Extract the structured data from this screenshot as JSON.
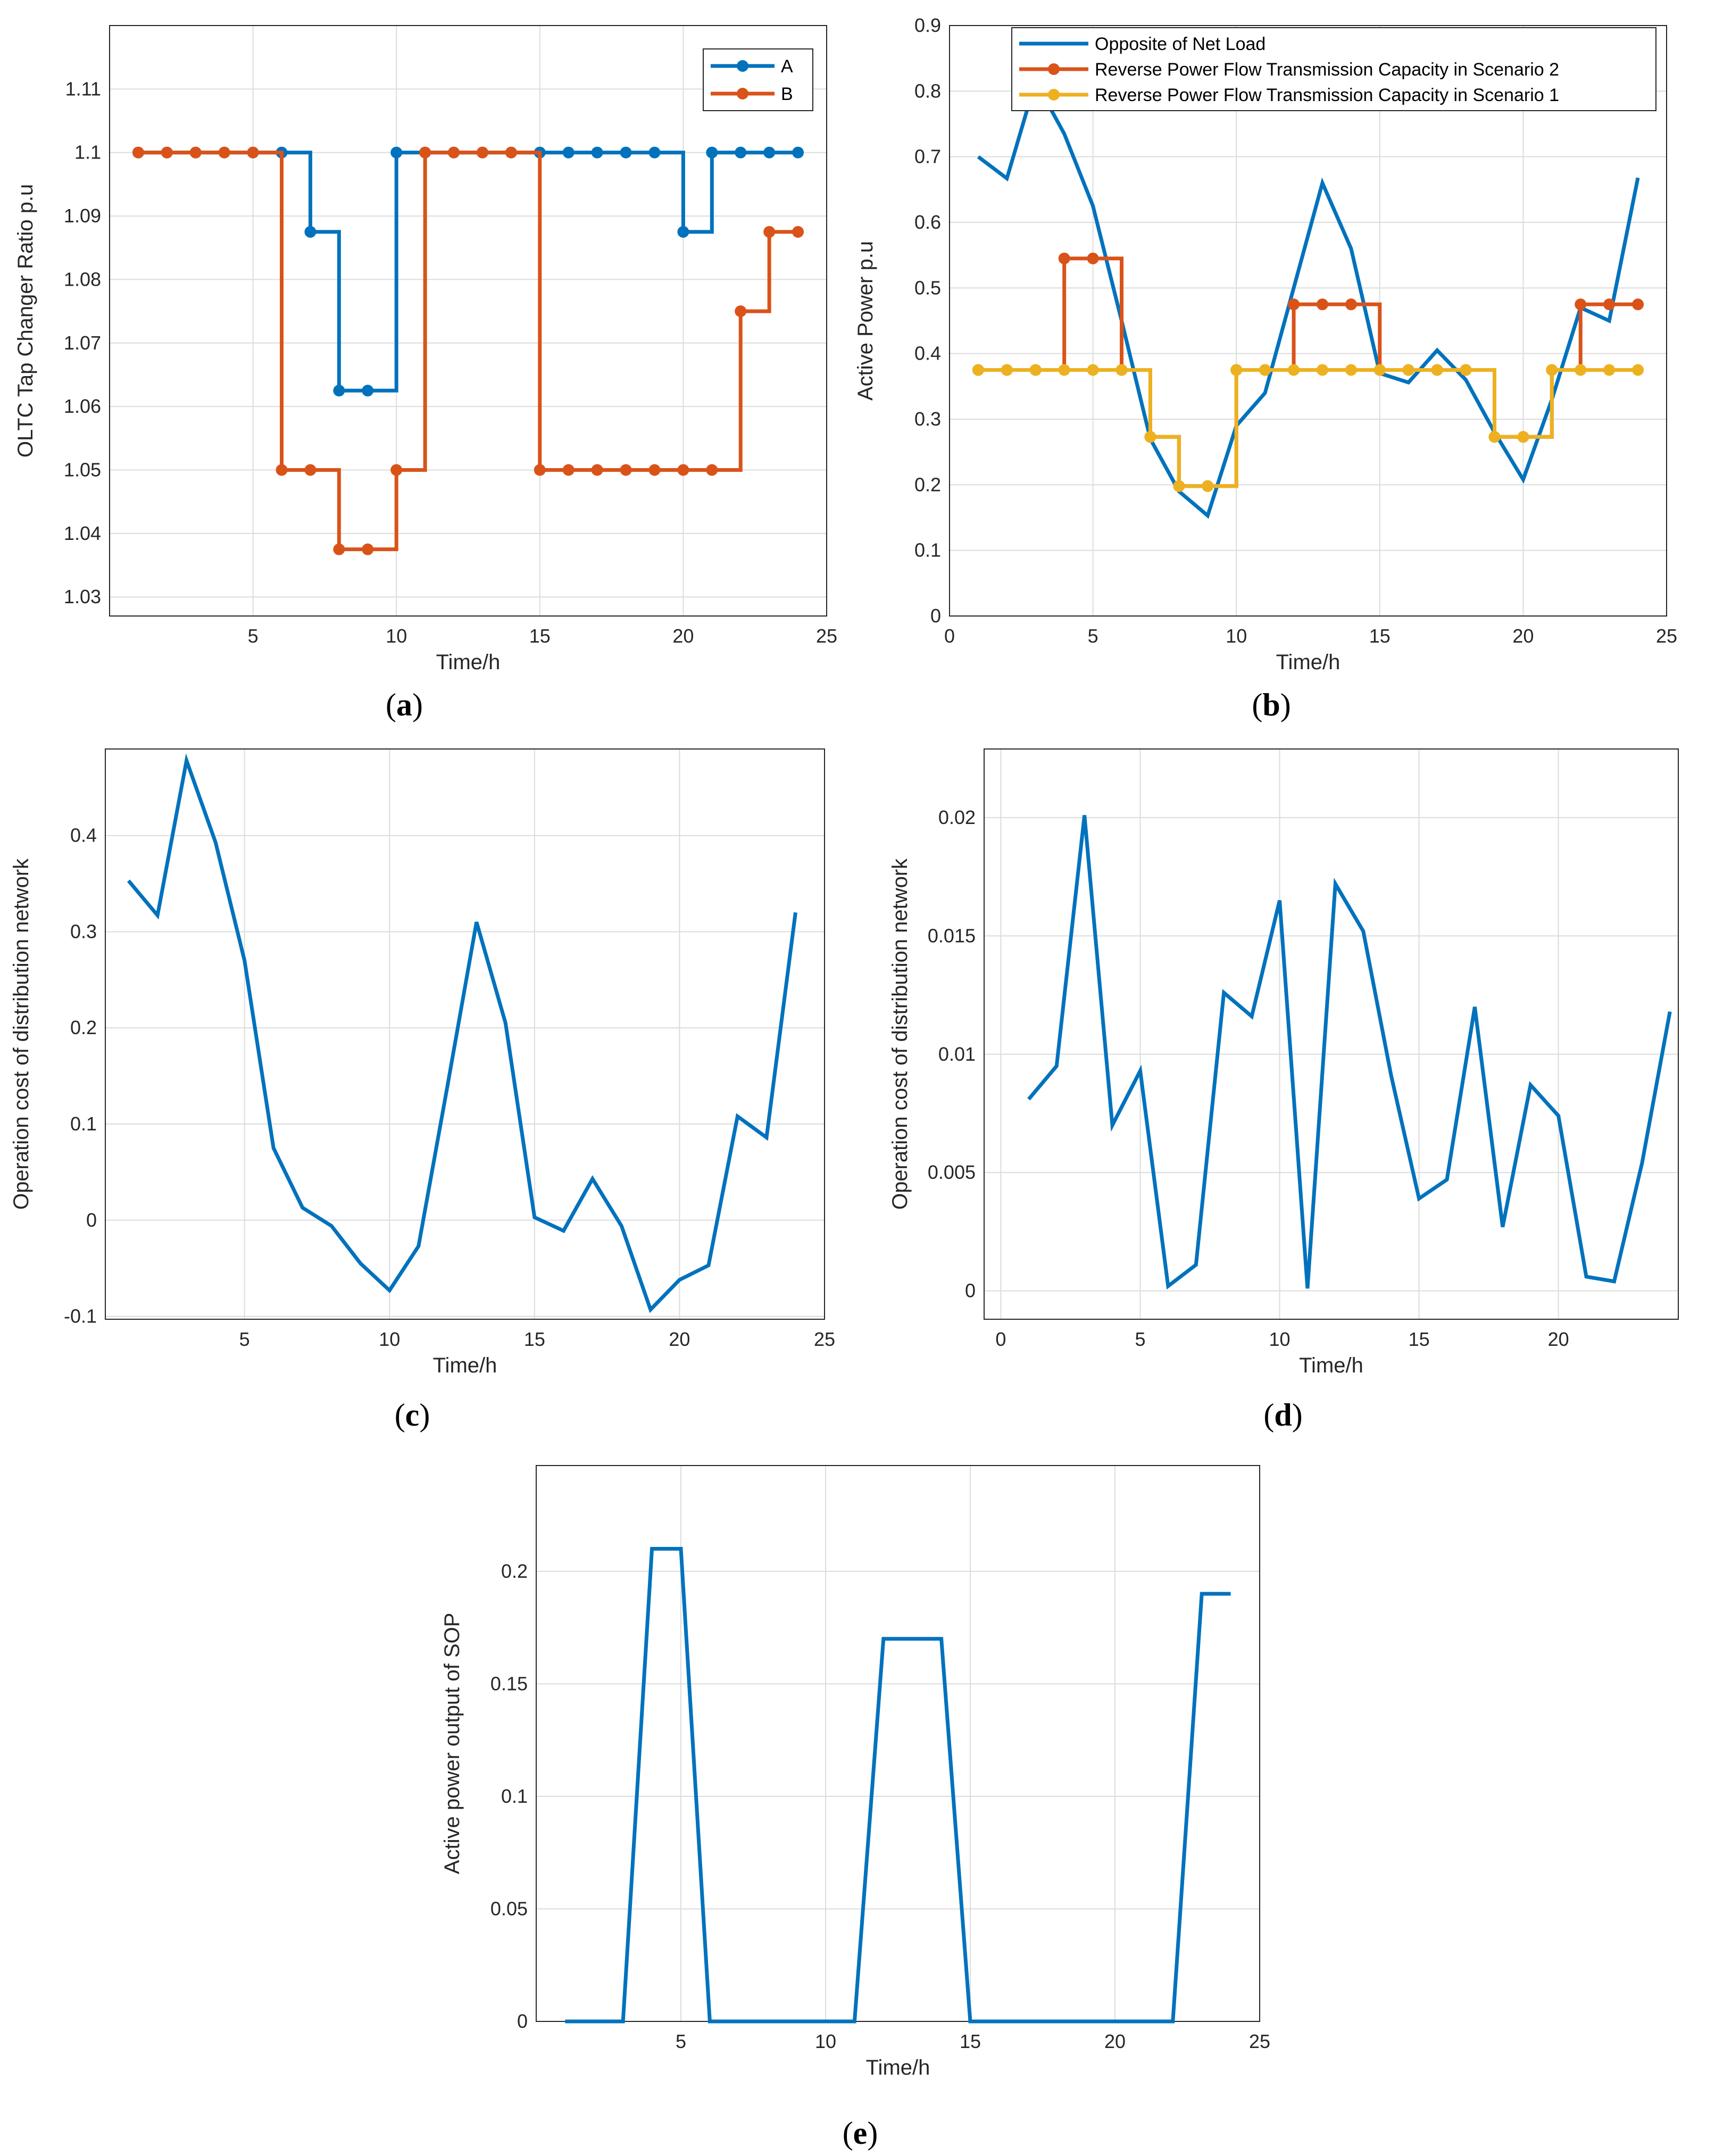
{
  "colors": {
    "blue": "#0072BD",
    "orange": "#D95319",
    "yellow": "#EDB120"
  },
  "chart_data": [
    {
      "id": "a",
      "panel_label": "a",
      "type": "line",
      "step": true,
      "markers": true,
      "xlabel": "Time/h",
      "ylabel": "OLTC Tap Changer Ratio p.u",
      "xlim": [
        0,
        25
      ],
      "ylim": [
        1.027,
        1.12
      ],
      "xticks": [
        5,
        10,
        15,
        20,
        25
      ],
      "yticks": [
        1.03,
        1.04,
        1.05,
        1.06,
        1.07,
        1.08,
        1.09,
        1.1,
        1.11
      ],
      "x": [
        1,
        2,
        3,
        4,
        5,
        6,
        7,
        8,
        9,
        10,
        11,
        12,
        13,
        14,
        15,
        16,
        17,
        18,
        19,
        20,
        21,
        22,
        23,
        24
      ],
      "series": [
        {
          "name": "A",
          "color": "#0072BD",
          "values": [
            1.1,
            1.1,
            1.1,
            1.1,
            1.1,
            1.1,
            1.0875,
            1.0625,
            1.0625,
            1.1,
            1.1,
            1.1,
            1.1,
            1.1,
            1.1,
            1.1,
            1.1,
            1.1,
            1.1,
            1.0875,
            1.1,
            1.1,
            1.1,
            1.1
          ]
        },
        {
          "name": "B",
          "color": "#D95319",
          "values": [
            1.1,
            1.1,
            1.1,
            1.1,
            1.1,
            1.05,
            1.05,
            1.0375,
            1.0375,
            1.05,
            1.1,
            1.1,
            1.1,
            1.1,
            1.05,
            1.05,
            1.05,
            1.05,
            1.05,
            1.05,
            1.05,
            1.075,
            1.0875,
            1.0875
          ]
        }
      ],
      "legend": [
        "A",
        "B"
      ],
      "legend_position": "top-right"
    },
    {
      "id": "b",
      "panel_label": "b",
      "type": "line",
      "xlabel": "Time/h",
      "ylabel": "Active Power p.u",
      "xlim": [
        0,
        25
      ],
      "ylim": [
        0,
        0.9
      ],
      "xticks": [
        0,
        5,
        10,
        15,
        20,
        25
      ],
      "yticks": [
        0,
        0.1,
        0.2,
        0.3,
        0.4,
        0.5,
        0.6,
        0.7,
        0.8,
        0.9
      ],
      "x": [
        1,
        2,
        3,
        4,
        5,
        6,
        7,
        8,
        9,
        10,
        11,
        12,
        13,
        14,
        15,
        16,
        17,
        18,
        19,
        20,
        21,
        22,
        23,
        24
      ],
      "series": [
        {
          "name": "Opposite of Net Load",
          "color": "#0072BD",
          "step": false,
          "markers": false,
          "values": [
            0.7,
            0.667,
            0.815,
            0.735,
            0.625,
            0.45,
            0.27,
            0.19,
            0.153,
            0.29,
            0.34,
            0.5,
            0.66,
            0.56,
            0.37,
            0.356,
            0.405,
            0.36,
            0.28,
            0.208,
            0.33,
            0.47,
            0.45,
            0.668
          ]
        },
        {
          "name": "Reverse Power Flow Transmission Capacity in Scenario 2",
          "color": "#D95319",
          "step": true,
          "markers": true,
          "values": [
            0.375,
            0.375,
            0.375,
            0.545,
            0.545,
            0.375,
            0.273,
            0.198,
            0.198,
            0.375,
            0.375,
            0.475,
            0.475,
            0.475,
            0.375,
            0.375,
            0.375,
            0.375,
            0.273,
            0.273,
            0.375,
            0.475,
            0.475,
            0.475
          ]
        },
        {
          "name": "Reverse Power Flow Transmission Capacity in Scenario 1",
          "color": "#EDB120",
          "step": true,
          "markers": true,
          "values": [
            0.375,
            0.375,
            0.375,
            0.375,
            0.375,
            0.375,
            0.273,
            0.198,
            0.198,
            0.375,
            0.375,
            0.375,
            0.375,
            0.375,
            0.375,
            0.375,
            0.375,
            0.375,
            0.273,
            0.273,
            0.375,
            0.375,
            0.375,
            0.375
          ]
        }
      ],
      "legend": [
        "Opposite of Net Load",
        "Reverse Power Flow Transmission Capacity in Scenario 2",
        "Reverse Power Flow Transmission Capacity in Scenario 1"
      ],
      "legend_position": "top-right"
    },
    {
      "id": "c",
      "panel_label": "c",
      "type": "line",
      "xlabel": "Time/h",
      "ylabel": "Operation cost of distribution network",
      "xlim": [
        0.2,
        25
      ],
      "ylim": [
        -0.103,
        0.49
      ],
      "xticks": [
        5,
        10,
        15,
        20,
        25
      ],
      "yticks": [
        -0.1,
        0,
        0.1,
        0.2,
        0.3,
        0.4
      ],
      "ytick_labels": [
        "-0.1",
        "0",
        "0.1",
        "0.2",
        "0.3",
        "0.4"
      ],
      "x": [
        1,
        2,
        3,
        4,
        5,
        6,
        7,
        8,
        9,
        10,
        11,
        12,
        13,
        14,
        15,
        16,
        17,
        18,
        19,
        20,
        21,
        22,
        23,
        24
      ],
      "series": [
        {
          "name": "cost",
          "color": "#0072BD",
          "values": [
            0.353,
            0.317,
            0.478,
            0.393,
            0.27,
            0.075,
            0.013,
            -0.006,
            -0.045,
            -0.073,
            -0.027,
            0.14,
            0.31,
            0.205,
            0.003,
            -0.011,
            0.043,
            -0.006,
            -0.093,
            -0.062,
            -0.047,
            0.108,
            0.086,
            0.32
          ]
        }
      ]
    },
    {
      "id": "d",
      "panel_label": "d",
      "type": "line",
      "xlabel": "Time/h",
      "ylabel": "Operation cost of distribution network",
      "xlim": [
        -0.6,
        24.3
      ],
      "ylim": [
        -0.0012,
        0.0229
      ],
      "xticks": [
        0,
        5,
        10,
        15,
        20
      ],
      "yticks": [
        0,
        0.005,
        0.01,
        0.015,
        0.02
      ],
      "x": [
        1,
        2,
        3,
        4,
        5,
        6,
        7,
        8,
        9,
        10,
        11,
        12,
        13,
        14,
        15,
        16,
        17,
        18,
        19,
        20,
        21,
        22,
        23,
        24
      ],
      "series": [
        {
          "name": "cost",
          "color": "#0072BD",
          "values": [
            0.0081,
            0.0095,
            0.0201,
            0.007,
            0.0093,
            0.0002,
            0.0011,
            0.0126,
            0.0116,
            0.0165,
            0.0001,
            0.0172,
            0.0152,
            0.0091,
            0.0039,
            0.0047,
            0.012,
            0.0027,
            0.0087,
            0.0074,
            0.0006,
            0.0004,
            0.0054,
            0.0118
          ]
        }
      ]
    },
    {
      "id": "e",
      "panel_label": "e",
      "type": "line",
      "xlabel": "Time/h",
      "ylabel": "Active power output of SOP",
      "xlim": [
        0,
        25
      ],
      "ylim": [
        0,
        0.247
      ],
      "xticks": [
        5,
        10,
        15,
        20,
        25
      ],
      "yticks": [
        0,
        0.05,
        0.1,
        0.15,
        0.2
      ],
      "x": [
        1,
        2,
        3,
        4,
        5,
        6,
        7,
        8,
        9,
        10,
        11,
        12,
        13,
        14,
        15,
        16,
        17,
        18,
        19,
        20,
        21,
        22,
        23,
        24
      ],
      "series": [
        {
          "name": "SOP",
          "color": "#0072BD",
          "values": [
            0,
            0,
            0,
            0.21,
            0.21,
            0,
            0,
            0,
            0,
            0,
            0,
            0.17,
            0.17,
            0.17,
            0,
            0,
            0,
            0,
            0,
            0,
            0,
            0,
            0.19,
            0.19
          ]
        }
      ]
    }
  ]
}
